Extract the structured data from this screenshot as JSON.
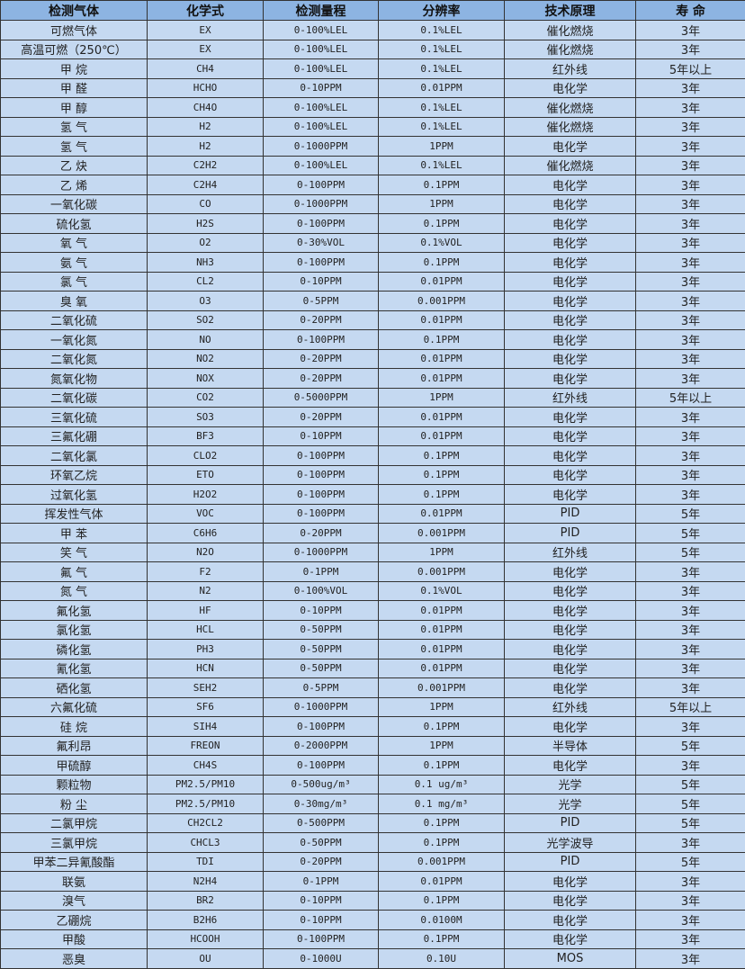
{
  "colors": {
    "header_bg": "#8db4e2",
    "cell_bg": "#c5d9f1",
    "border": "#333333"
  },
  "headers": [
    "检测气体",
    "化学式",
    "检测量程",
    "分辨率",
    "技术原理",
    "寿 命"
  ],
  "rows": [
    [
      "可燃气体",
      "EX",
      "0-100%LEL",
      "0.1%LEL",
      "催化燃烧",
      "3年"
    ],
    [
      "高温可燃（250℃）",
      "EX",
      "0-100%LEL",
      "0.1%LEL",
      "催化燃烧",
      "3年"
    ],
    [
      "甲 烷",
      "CH4",
      "0-100%LEL",
      "0.1%LEL",
      "红外线",
      "5年以上"
    ],
    [
      "甲 醛",
      "HCHO",
      "0-10PPM",
      "0.01PPM",
      "电化学",
      "3年"
    ],
    [
      "甲 醇",
      "CH4O",
      "0-100%LEL",
      "0.1%LEL",
      "催化燃烧",
      "3年"
    ],
    [
      "氢 气",
      "H2",
      "0-100%LEL",
      "0.1%LEL",
      "催化燃烧",
      "3年"
    ],
    [
      "氢 气",
      "H2",
      "0-1000PPM",
      "1PPM",
      "电化学",
      "3年"
    ],
    [
      "乙 炔",
      "C2H2",
      "0-100%LEL",
      "0.1%LEL",
      "催化燃烧",
      "3年"
    ],
    [
      "乙 烯",
      "C2H4",
      "0-100PPM",
      "0.1PPM",
      "电化学",
      "3年"
    ],
    [
      "一氧化碳",
      "CO",
      "0-1000PPM",
      "1PPM",
      "电化学",
      "3年"
    ],
    [
      "硫化氢",
      "H2S",
      "0-100PPM",
      "0.1PPM",
      "电化学",
      "3年"
    ],
    [
      "氧 气",
      "O2",
      "0-30%VOL",
      "0.1%VOL",
      "电化学",
      "3年"
    ],
    [
      "氨 气",
      "NH3",
      "0-100PPM",
      "0.1PPM",
      "电化学",
      "3年"
    ],
    [
      "氯 气",
      "CL2",
      "0-10PPM",
      "0.01PPM",
      "电化学",
      "3年"
    ],
    [
      "臭 氧",
      "O3",
      "0-5PPM",
      "0.001PPM",
      "电化学",
      "3年"
    ],
    [
      "二氧化硫",
      "SO2",
      "0-20PPM",
      "0.01PPM",
      "电化学",
      "3年"
    ],
    [
      "一氧化氮",
      "NO",
      "0-100PPM",
      "0.1PPM",
      "电化学",
      "3年"
    ],
    [
      "二氧化氮",
      "NO2",
      "0-20PPM",
      "0.01PPM",
      "电化学",
      "3年"
    ],
    [
      "氮氧化物",
      "NOX",
      "0-20PPM",
      "0.01PPM",
      "电化学",
      "3年"
    ],
    [
      "二氧化碳",
      "CO2",
      "0-5000PPM",
      "1PPM",
      "红外线",
      "5年以上"
    ],
    [
      "三氧化硫",
      "SO3",
      "0-20PPM",
      "0.01PPM",
      "电化学",
      "3年"
    ],
    [
      "三氟化硼",
      "BF3",
      "0-10PPM",
      "0.01PPM",
      "电化学",
      "3年"
    ],
    [
      "二氧化氯",
      "CLO2",
      "0-100PPM",
      "0.1PPM",
      "电化学",
      "3年"
    ],
    [
      "环氧乙烷",
      "ETO",
      "0-100PPM",
      "0.1PPM",
      "电化学",
      "3年"
    ],
    [
      "过氧化氢",
      "H2O2",
      "0-100PPM",
      "0.1PPM",
      "电化学",
      "3年"
    ],
    [
      "挥发性气体",
      "VOC",
      "0-100PPM",
      "0.01PPM",
      "PID",
      "5年"
    ],
    [
      "甲 苯",
      "C6H6",
      "0-20PPM",
      "0.001PPM",
      "PID",
      "5年"
    ],
    [
      "笑 气",
      "N2O",
      "0-1000PPM",
      "1PPM",
      "红外线",
      "5年"
    ],
    [
      "氟 气",
      "F2",
      "0-1PPM",
      "0.001PPM",
      "电化学",
      "3年"
    ],
    [
      "氮 气",
      "N2",
      "0-100%VOL",
      "0.1%VOL",
      "电化学",
      "3年"
    ],
    [
      "氟化氢",
      "HF",
      "0-10PPM",
      "0.01PPM",
      "电化学",
      "3年"
    ],
    [
      "氯化氢",
      "HCL",
      "0-50PPM",
      "0.01PPM",
      "电化学",
      "3年"
    ],
    [
      "磷化氢",
      "PH3",
      "0-50PPM",
      "0.01PPM",
      "电化学",
      "3年"
    ],
    [
      "氰化氢",
      "HCN",
      "0-50PPM",
      "0.01PPM",
      "电化学",
      "3年"
    ],
    [
      "硒化氢",
      "SEH2",
      "0-5PPM",
      "0.001PPM",
      "电化学",
      "3年"
    ],
    [
      "六氟化硫",
      "SF6",
      "0-1000PPM",
      "1PPM",
      "红外线",
      "5年以上"
    ],
    [
      "硅 烷",
      "SIH4",
      "0-100PPM",
      "0.1PPM",
      "电化学",
      "3年"
    ],
    [
      "氟利昂",
      "FREON",
      "0-2000PPM",
      "1PPM",
      "半导体",
      "5年"
    ],
    [
      "甲硫醇",
      "CH4S",
      "0-100PPM",
      "0.1PPM",
      "电化学",
      "3年"
    ],
    [
      "颗粒物",
      "PM2.5/PM10",
      "0-500ug/m³",
      "0.1 ug/m³",
      "光学",
      "5年"
    ],
    [
      "粉 尘",
      "PM2.5/PM10",
      "0-30mg/m³",
      "0.1 mg/m³",
      "光学",
      "5年"
    ],
    [
      "二氯甲烷",
      "CH2CL2",
      "0-500PPM",
      "0.1PPM",
      "PID",
      "5年"
    ],
    [
      "三氯甲烷",
      "CHCL3",
      "0-50PPM",
      "0.1PPM",
      "光学波导",
      "3年"
    ],
    [
      "甲苯二异氰酸酯",
      "TDI",
      "0-20PPM",
      "0.001PPM",
      "PID",
      "5年"
    ],
    [
      "联氨",
      "N2H4",
      "0-1PPM",
      "0.01PPM",
      "电化学",
      "3年"
    ],
    [
      "溴气",
      "BR2",
      "0-10PPM",
      "0.1PPM",
      "电化学",
      "3年"
    ],
    [
      "乙硼烷",
      "B2H6",
      "0-10PPM",
      "0.0100M",
      "电化学",
      "3年"
    ],
    [
      "甲酸",
      "HCOOH",
      "0-100PPM",
      "0.1PPM",
      "电化学",
      "3年"
    ],
    [
      "恶臭",
      "OU",
      "0-1000U",
      "0.10U",
      "MOS",
      "3年"
    ]
  ]
}
